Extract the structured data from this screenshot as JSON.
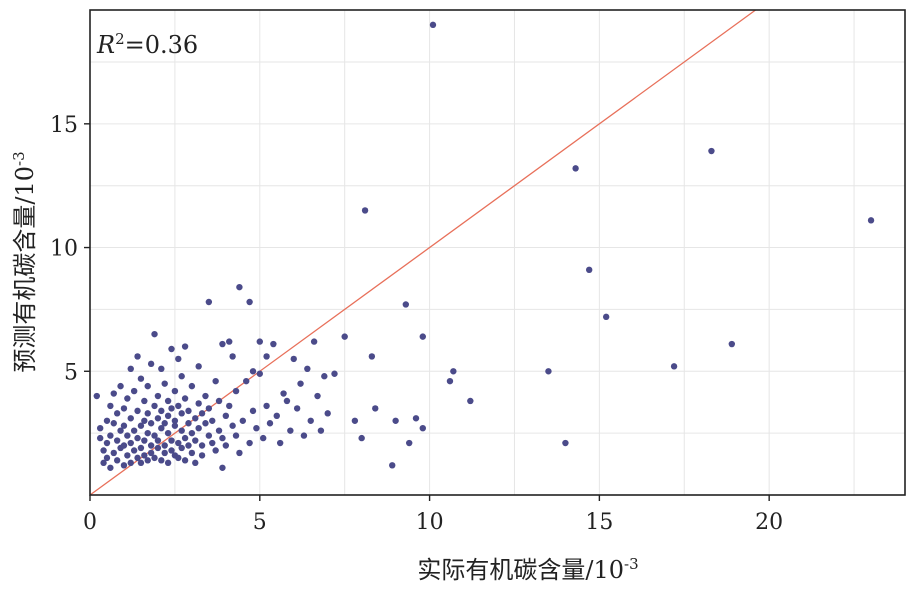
{
  "chart_data": {
    "type": "scatter",
    "title": "",
    "xlabel": "实际有机碳含量/10",
    "xlabel_sup": "-3",
    "ylabel": "预测有机碳含量/10",
    "ylabel_sup": "-3",
    "xlim": [
      0,
      24
    ],
    "ylim": [
      0,
      19.6
    ],
    "xticks": [
      0,
      5,
      10,
      15,
      20
    ],
    "yticks": [
      5,
      10,
      15
    ],
    "grid": true,
    "annotation": {
      "R_symbol": "R",
      "power": "2",
      "value": "=0.36"
    },
    "reference_line": {
      "type": "y=x",
      "color": "#e8705a"
    },
    "point_color": "#4b4b8a",
    "points": [
      [
        0.2,
        4.0
      ],
      [
        0.3,
        2.7
      ],
      [
        0.3,
        2.3
      ],
      [
        0.4,
        1.3
      ],
      [
        0.4,
        1.8
      ],
      [
        0.5,
        2.1
      ],
      [
        0.5,
        1.5
      ],
      [
        0.5,
        3.0
      ],
      [
        0.6,
        2.4
      ],
      [
        0.6,
        1.1
      ],
      [
        0.6,
        3.6
      ],
      [
        0.7,
        2.9
      ],
      [
        0.7,
        1.7
      ],
      [
        0.7,
        4.1
      ],
      [
        0.8,
        2.2
      ],
      [
        0.8,
        1.4
      ],
      [
        0.8,
        3.3
      ],
      [
        0.9,
        2.6
      ],
      [
        0.9,
        1.9
      ],
      [
        0.9,
        4.4
      ],
      [
        1.0,
        2.0
      ],
      [
        1.0,
        1.2
      ],
      [
        1.0,
        3.5
      ],
      [
        1.0,
        2.8
      ],
      [
        1.1,
        1.6
      ],
      [
        1.1,
        2.4
      ],
      [
        1.1,
        3.9
      ],
      [
        1.2,
        1.3
      ],
      [
        1.2,
        2.1
      ],
      [
        1.2,
        3.1
      ],
      [
        1.2,
        5.1
      ],
      [
        1.3,
        1.8
      ],
      [
        1.3,
        2.6
      ],
      [
        1.3,
        4.2
      ],
      [
        1.4,
        1.5
      ],
      [
        1.4,
        2.3
      ],
      [
        1.4,
        3.4
      ],
      [
        1.4,
        5.6
      ],
      [
        1.5,
        1.9
      ],
      [
        1.5,
        2.8
      ],
      [
        1.5,
        1.3
      ],
      [
        1.5,
        4.7
      ],
      [
        1.6,
        2.2
      ],
      [
        1.6,
        3.0
      ],
      [
        1.6,
        1.6
      ],
      [
        1.6,
        3.8
      ],
      [
        1.7,
        2.5
      ],
      [
        1.7,
        1.4
      ],
      [
        1.7,
        3.3
      ],
      [
        1.7,
        4.4
      ],
      [
        1.8,
        2.0
      ],
      [
        1.8,
        2.9
      ],
      [
        1.8,
        1.7
      ],
      [
        1.8,
        5.3
      ],
      [
        1.9,
        2.4
      ],
      [
        1.9,
        3.6
      ],
      [
        1.9,
        1.5
      ],
      [
        1.9,
        6.5
      ],
      [
        2.0,
        2.2
      ],
      [
        2.0,
        3.1
      ],
      [
        2.0,
        1.9
      ],
      [
        2.0,
        4.0
      ],
      [
        2.1,
        2.7
      ],
      [
        2.1,
        1.4
      ],
      [
        2.1,
        3.4
      ],
      [
        2.1,
        5.1
      ],
      [
        2.2,
        2.0
      ],
      [
        2.2,
        2.9
      ],
      [
        2.2,
        1.7
      ],
      [
        2.2,
        4.5
      ],
      [
        2.3,
        2.5
      ],
      [
        2.3,
        3.2
      ],
      [
        2.3,
        1.3
      ],
      [
        2.3,
        3.8
      ],
      [
        2.4,
        2.2
      ],
      [
        2.4,
        3.5
      ],
      [
        2.4,
        1.8
      ],
      [
        2.4,
        5.9
      ],
      [
        2.5,
        2.8
      ],
      [
        2.5,
        1.6
      ],
      [
        2.5,
        4.2
      ],
      [
        2.5,
        3.0
      ],
      [
        2.6,
        2.1
      ],
      [
        2.6,
        3.6
      ],
      [
        2.6,
        1.5
      ],
      [
        2.6,
        5.5
      ],
      [
        2.7,
        2.6
      ],
      [
        2.7,
        3.3
      ],
      [
        2.7,
        1.9
      ],
      [
        2.7,
        4.8
      ],
      [
        2.8,
        2.3
      ],
      [
        2.8,
        3.9
      ],
      [
        2.8,
        1.4
      ],
      [
        2.8,
        6.0
      ],
      [
        2.9,
        2.9
      ],
      [
        2.9,
        2.0
      ],
      [
        2.9,
        3.4
      ],
      [
        3.0,
        2.5
      ],
      [
        3.0,
        1.7
      ],
      [
        3.0,
        4.4
      ],
      [
        3.1,
        3.1
      ],
      [
        3.1,
        2.2
      ],
      [
        3.1,
        1.3
      ],
      [
        3.2,
        3.7
      ],
      [
        3.2,
        2.7
      ],
      [
        3.2,
        5.2
      ],
      [
        3.3,
        2.0
      ],
      [
        3.3,
        3.3
      ],
      [
        3.3,
        1.6
      ],
      [
        3.4,
        2.9
      ],
      [
        3.4,
        4.0
      ],
      [
        3.5,
        2.4
      ],
      [
        3.5,
        3.5
      ],
      [
        3.5,
        7.8
      ],
      [
        3.6,
        2.1
      ],
      [
        3.6,
        3.0
      ],
      [
        3.7,
        1.8
      ],
      [
        3.7,
        4.6
      ],
      [
        3.8,
        2.6
      ],
      [
        3.8,
        3.8
      ],
      [
        3.9,
        2.3
      ],
      [
        3.9,
        1.1
      ],
      [
        3.9,
        6.1
      ],
      [
        4.0,
        3.2
      ],
      [
        4.0,
        2.0
      ],
      [
        4.1,
        3.6
      ],
      [
        4.1,
        6.2
      ],
      [
        4.2,
        2.8
      ],
      [
        4.2,
        5.6
      ],
      [
        4.3,
        2.4
      ],
      [
        4.3,
        4.2
      ],
      [
        4.4,
        1.7
      ],
      [
        4.4,
        8.4
      ],
      [
        4.5,
        3.0
      ],
      [
        4.6,
        4.6
      ],
      [
        4.7,
        2.1
      ],
      [
        4.7,
        7.8
      ],
      [
        4.8,
        3.4
      ],
      [
        4.8,
        5.0
      ],
      [
        4.9,
        2.7
      ],
      [
        5.0,
        6.2
      ],
      [
        5.0,
        4.9
      ],
      [
        5.1,
        2.3
      ],
      [
        5.2,
        3.6
      ],
      [
        5.2,
        5.6
      ],
      [
        5.3,
        2.9
      ],
      [
        5.4,
        6.1
      ],
      [
        5.5,
        3.2
      ],
      [
        5.6,
        2.1
      ],
      [
        5.7,
        4.1
      ],
      [
        5.8,
        3.8
      ],
      [
        5.9,
        2.6
      ],
      [
        6.0,
        5.5
      ],
      [
        6.1,
        3.5
      ],
      [
        6.2,
        4.5
      ],
      [
        6.3,
        2.4
      ],
      [
        6.4,
        5.1
      ],
      [
        6.5,
        3.0
      ],
      [
        6.6,
        6.2
      ],
      [
        6.7,
        4.0
      ],
      [
        6.8,
        2.6
      ],
      [
        6.9,
        4.8
      ],
      [
        7.0,
        3.3
      ],
      [
        7.2,
        4.9
      ],
      [
        7.5,
        6.4
      ],
      [
        7.8,
        3.0
      ],
      [
        8.0,
        2.3
      ],
      [
        8.1,
        11.5
      ],
      [
        8.3,
        5.6
      ],
      [
        8.4,
        3.5
      ],
      [
        8.9,
        1.2
      ],
      [
        9.0,
        3.0
      ],
      [
        9.3,
        7.7
      ],
      [
        9.4,
        2.1
      ],
      [
        9.6,
        3.1
      ],
      [
        9.8,
        2.7
      ],
      [
        9.8,
        6.4
      ],
      [
        10.1,
        19.0
      ],
      [
        10.6,
        4.6
      ],
      [
        10.7,
        5.0
      ],
      [
        11.2,
        3.8
      ],
      [
        13.5,
        5.0
      ],
      [
        14.0,
        2.1
      ],
      [
        14.3,
        13.2
      ],
      [
        14.7,
        9.1
      ],
      [
        15.2,
        7.2
      ],
      [
        17.2,
        5.2
      ],
      [
        18.3,
        13.9
      ],
      [
        18.9,
        6.1
      ],
      [
        23.0,
        11.1
      ]
    ]
  }
}
